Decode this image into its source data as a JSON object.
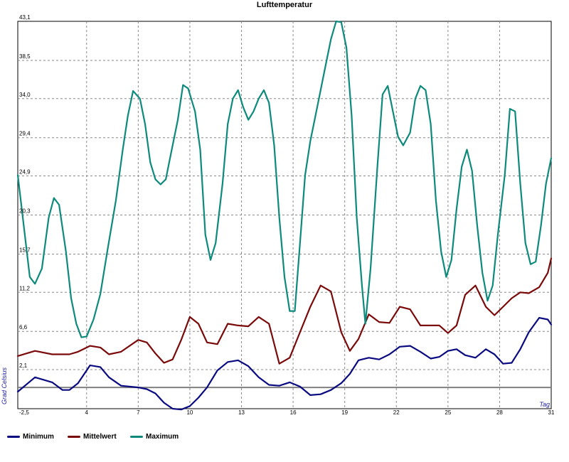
{
  "chart_data": {
    "type": "line",
    "title": "Lufttemperatur",
    "xlabel": "Tag",
    "ylabel": "Grad Celsius",
    "xlim": [
      0,
      31
    ],
    "ylim": [
      -2.5,
      43.1
    ],
    "xticks": [
      0,
      4,
      7,
      10,
      13,
      16,
      19,
      22,
      25,
      28,
      31
    ],
    "xtick_labels": [
      "",
      "4",
      "7",
      "10",
      "13",
      "16",
      "19",
      "22",
      "25",
      "28",
      "31"
    ],
    "yticks": [
      -2.5,
      2.1,
      6.6,
      11.2,
      15.7,
      20.3,
      24.9,
      29.4,
      34.0,
      38.5,
      43.1
    ],
    "ytick_labels": [
      "-2,5",
      "2,1",
      "6,6",
      "11,2",
      "15,7",
      "20,3",
      "24,9",
      "29,4",
      "34,0",
      "38,5",
      "43,1"
    ],
    "zero_line": 0,
    "grid": true,
    "legend_position": "bottom",
    "series": [
      {
        "name": "Minimum",
        "color": "#0a0a80",
        "points": [
          [
            0,
            -0.5
          ],
          [
            1,
            1.2
          ],
          [
            2,
            0.6
          ],
          [
            2.6,
            -0.3
          ],
          [
            3,
            -0.3
          ],
          [
            3.5,
            0.5
          ],
          [
            4.2,
            2.6
          ],
          [
            4.8,
            2.4
          ],
          [
            5.3,
            1.2
          ],
          [
            6,
            0.2
          ],
          [
            7,
            0
          ],
          [
            7.5,
            -0.2
          ],
          [
            8,
            -0.7
          ],
          [
            8.5,
            -1.8
          ],
          [
            9,
            -2.5
          ],
          [
            9.5,
            -2.6
          ],
          [
            10,
            -2.2
          ],
          [
            10.5,
            -1.2
          ],
          [
            11,
            0
          ],
          [
            11.6,
            2
          ],
          [
            12.2,
            3
          ],
          [
            12.8,
            3.2
          ],
          [
            13.4,
            2.5
          ],
          [
            14,
            1.2
          ],
          [
            14.6,
            0.3
          ],
          [
            15.2,
            0.2
          ],
          [
            15.8,
            0.6
          ],
          [
            16.4,
            0.1
          ],
          [
            17,
            -0.9
          ],
          [
            17.6,
            -0.8
          ],
          [
            18.2,
            -0.3
          ],
          [
            18.8,
            0.5
          ],
          [
            19.3,
            1.6
          ],
          [
            19.8,
            3.2
          ],
          [
            20.4,
            3.5
          ],
          [
            21,
            3.3
          ],
          [
            21.6,
            3.9
          ],
          [
            22.2,
            4.8
          ],
          [
            22.8,
            4.9
          ],
          [
            23.4,
            4.2
          ],
          [
            24,
            3.4
          ],
          [
            24.5,
            3.6
          ],
          [
            25,
            4.3
          ],
          [
            25.5,
            4.5
          ],
          [
            26,
            3.8
          ],
          [
            26.6,
            3.5
          ],
          [
            27.2,
            4.5
          ],
          [
            27.7,
            3.9
          ],
          [
            28.2,
            2.8
          ],
          [
            28.7,
            2.9
          ],
          [
            29.2,
            4.5
          ],
          [
            29.7,
            6.5
          ],
          [
            30.3,
            8.2
          ],
          [
            30.8,
            8
          ],
          [
            31,
            7.4
          ]
        ]
      },
      {
        "name": "Mittelwert",
        "color": "#7a0a0a",
        "points": [
          [
            0,
            3.7
          ],
          [
            1,
            4.3
          ],
          [
            2,
            3.9
          ],
          [
            2.6,
            3.9
          ],
          [
            3,
            3.9
          ],
          [
            3.5,
            4.2
          ],
          [
            4.2,
            4.9
          ],
          [
            4.8,
            4.7
          ],
          [
            5.3,
            3.9
          ],
          [
            6,
            4.2
          ],
          [
            7,
            5.6
          ],
          [
            7.5,
            5.3
          ],
          [
            8,
            4
          ],
          [
            8.5,
            2.9
          ],
          [
            9,
            3.3
          ],
          [
            9.5,
            5.6
          ],
          [
            10,
            8.3
          ],
          [
            10.5,
            7.5
          ],
          [
            11,
            5.3
          ],
          [
            11.6,
            5.1
          ],
          [
            12.2,
            7.5
          ],
          [
            12.8,
            7.3
          ],
          [
            13.4,
            7.2
          ],
          [
            14,
            8.3
          ],
          [
            14.6,
            7.5
          ],
          [
            15.2,
            2.8
          ],
          [
            15.8,
            3.5
          ],
          [
            16.4,
            6.5
          ],
          [
            17,
            9.5
          ],
          [
            17.6,
            12
          ],
          [
            18.2,
            11.3
          ],
          [
            18.8,
            6.5
          ],
          [
            19.3,
            4.3
          ],
          [
            19.8,
            5.7
          ],
          [
            20.4,
            8.6
          ],
          [
            21,
            7.7
          ],
          [
            21.6,
            7.6
          ],
          [
            22.2,
            9.5
          ],
          [
            22.8,
            9.2
          ],
          [
            23.4,
            7.3
          ],
          [
            24,
            7.3
          ],
          [
            24.5,
            7.3
          ],
          [
            25,
            6.4
          ],
          [
            25.5,
            7.3
          ],
          [
            26,
            10.9
          ],
          [
            26.6,
            12
          ],
          [
            27.2,
            9.5
          ],
          [
            27.7,
            8.5
          ],
          [
            28.2,
            9.5
          ],
          [
            28.7,
            10.5
          ],
          [
            29.2,
            11.2
          ],
          [
            29.7,
            11.1
          ],
          [
            30.3,
            11.8
          ],
          [
            30.8,
            13.5
          ],
          [
            31,
            15.2
          ]
        ]
      },
      {
        "name": "Maximum",
        "color": "#0d8a7c",
        "points": [
          [
            0,
            25
          ],
          [
            0.7,
            13
          ],
          [
            1,
            12.2
          ],
          [
            1.4,
            14
          ],
          [
            1.8,
            20
          ],
          [
            2.1,
            22.3
          ],
          [
            2.4,
            21.5
          ],
          [
            2.8,
            16
          ],
          [
            3.1,
            10.5
          ],
          [
            3.4,
            7.5
          ],
          [
            3.7,
            5.9
          ],
          [
            4,
            6
          ],
          [
            4.4,
            8
          ],
          [
            4.8,
            11
          ],
          [
            5.2,
            16
          ],
          [
            5.7,
            22
          ],
          [
            6.1,
            28
          ],
          [
            6.4,
            32
          ],
          [
            6.7,
            34.9
          ],
          [
            7.1,
            34
          ],
          [
            7.4,
            31
          ],
          [
            7.7,
            26.5
          ],
          [
            8,
            24.5
          ],
          [
            8.3,
            23.9
          ],
          [
            8.6,
            24.5
          ],
          [
            8.9,
            27.5
          ],
          [
            9.3,
            31.5
          ],
          [
            9.6,
            35.6
          ],
          [
            9.9,
            35.2
          ],
          [
            10.3,
            32.5
          ],
          [
            10.6,
            28
          ],
          [
            10.9,
            18
          ],
          [
            11.2,
            15
          ],
          [
            11.5,
            17
          ],
          [
            11.9,
            24
          ],
          [
            12.2,
            31
          ],
          [
            12.5,
            34
          ],
          [
            12.8,
            35
          ],
          [
            13.1,
            33
          ],
          [
            13.4,
            31.5
          ],
          [
            13.7,
            32.5
          ],
          [
            14,
            34
          ],
          [
            14.3,
            35
          ],
          [
            14.6,
            33.5
          ],
          [
            14.9,
            28.5
          ],
          [
            15.2,
            20
          ],
          [
            15.5,
            13
          ],
          [
            15.8,
            9
          ],
          [
            16.1,
            9
          ],
          [
            16.4,
            17
          ],
          [
            16.7,
            25
          ],
          [
            17,
            29
          ],
          [
            17.4,
            33
          ],
          [
            17.8,
            37
          ],
          [
            18.2,
            41
          ],
          [
            18.5,
            43.1
          ],
          [
            18.8,
            43
          ],
          [
            19.1,
            40
          ],
          [
            19.4,
            32
          ],
          [
            19.7,
            20
          ],
          [
            20,
            12
          ],
          [
            20.2,
            7.5
          ],
          [
            20.5,
            14
          ],
          [
            20.9,
            26
          ],
          [
            21.2,
            34.5
          ],
          [
            21.5,
            35.5
          ],
          [
            21.8,
            32.5
          ],
          [
            22.1,
            29.5
          ],
          [
            22.4,
            28.5
          ],
          [
            22.8,
            30
          ],
          [
            23.1,
            34
          ],
          [
            23.4,
            35.5
          ],
          [
            23.7,
            35
          ],
          [
            24,
            31
          ],
          [
            24.3,
            22
          ],
          [
            24.6,
            16
          ],
          [
            24.9,
            13
          ],
          [
            25.2,
            15
          ],
          [
            25.5,
            21
          ],
          [
            25.8,
            26
          ],
          [
            26.1,
            28
          ],
          [
            26.4,
            25.5
          ],
          [
            26.7,
            19
          ],
          [
            27,
            13.5
          ],
          [
            27.3,
            10.2
          ],
          [
            27.6,
            12
          ],
          [
            27.9,
            18
          ],
          [
            28.3,
            25
          ],
          [
            28.6,
            32.8
          ],
          [
            28.9,
            32.5
          ],
          [
            29.2,
            24
          ],
          [
            29.5,
            17
          ],
          [
            29.8,
            14.5
          ],
          [
            30.1,
            14.8
          ],
          [
            30.4,
            19
          ],
          [
            30.7,
            24
          ],
          [
            31,
            27
          ]
        ]
      }
    ]
  }
}
